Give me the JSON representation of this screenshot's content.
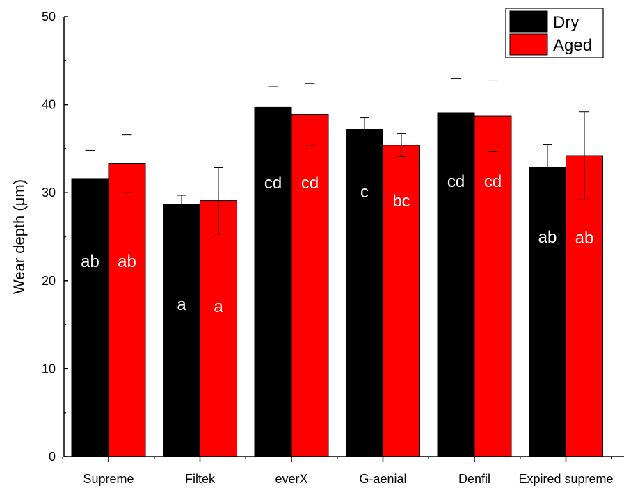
{
  "chart_data": {
    "type": "bar",
    "categories": [
      "Supreme",
      "Filtek",
      "everX",
      "G-aenial",
      "Denfil",
      "Expired supreme"
    ],
    "series": [
      {
        "name": "Dry",
        "color": "#000000",
        "values": [
          31.6,
          28.7,
          39.7,
          37.2,
          39.1,
          32.9
        ],
        "errors": [
          3.2,
          1.0,
          2.4,
          1.3,
          3.9,
          2.6
        ],
        "group_labels": [
          "ab",
          "a",
          "cd",
          "c",
          "cd",
          "ab"
        ]
      },
      {
        "name": "Aged",
        "color": "#ff0000",
        "values": [
          33.3,
          29.1,
          38.9,
          35.4,
          38.7,
          34.2
        ],
        "errors": [
          3.3,
          3.8,
          3.5,
          1.3,
          4.0,
          5.0
        ],
        "group_labels": [
          "ab",
          "a",
          "cd",
          "bc",
          "cd",
          "ab"
        ]
      }
    ],
    "title": "",
    "xlabel": "",
    "ylabel": "Wear depth (μm)",
    "ylim": [
      0,
      50
    ],
    "yticks": [
      "0",
      "10",
      "20",
      "30",
      "40",
      "50"
    ],
    "grid": false,
    "legend_position": "top-right"
  }
}
